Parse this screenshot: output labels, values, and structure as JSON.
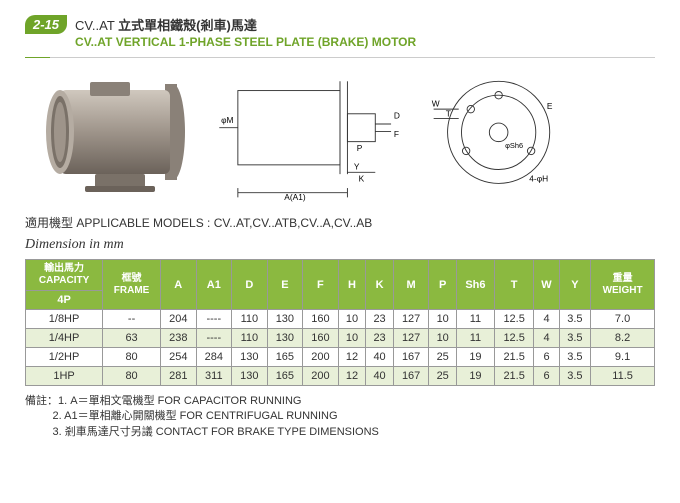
{
  "header": {
    "badge": "2-15",
    "code": "CV..AT",
    "title_zh": "立式單相鐵殼(剎車)馬達",
    "title_en": "CV..AT  VERTICAL 1-PHASE STEEL PLATE (BRAKE) MOTOR"
  },
  "diagram": {
    "labels": {
      "phiM": "φM",
      "D": "D",
      "F": "F",
      "P": "P",
      "Y": "Y",
      "K": "K",
      "A": "A(A1)",
      "W": "W",
      "T": "T",
      "E": "E",
      "Sh6": "φSh6",
      "H": "4-φH"
    }
  },
  "models": {
    "label": "適用機型 APPLICABLE MODELS :",
    "value": "CV..AT,CV..ATB,CV..A,CV..AB"
  },
  "dim_label": "Dimension in mm",
  "table": {
    "headers": {
      "capacity": {
        "zh": "輸出馬力",
        "en": "CAPACITY",
        "sub": "4P"
      },
      "frame": {
        "zh": "框號",
        "en": "FRAME"
      },
      "cols": [
        "A",
        "A1",
        "D",
        "E",
        "F",
        "H",
        "K",
        "M",
        "P",
        "Sh6",
        "T",
        "W",
        "Y"
      ],
      "weight": {
        "zh": "重量",
        "en": "WEIGHT"
      }
    },
    "rows": [
      {
        "cap": "1/8HP",
        "frame": "--",
        "A": "204",
        "A1": "----",
        "D": "110",
        "E": "130",
        "F": "160",
        "H": "10",
        "K": "23",
        "M": "127",
        "P": "10",
        "Sh6": "11",
        "T": "12.5",
        "W": "4",
        "Y": "3.5",
        "weight": "7.0"
      },
      {
        "cap": "1/4HP",
        "frame": "63",
        "A": "238",
        "A1": "----",
        "D": "110",
        "E": "130",
        "F": "160",
        "H": "10",
        "K": "23",
        "M": "127",
        "P": "10",
        "Sh6": "11",
        "T": "12.5",
        "W": "4",
        "Y": "3.5",
        "weight": "8.2"
      },
      {
        "cap": "1/2HP",
        "frame": "80",
        "A": "254",
        "A1": "284",
        "D": "130",
        "E": "165",
        "F": "200",
        "H": "12",
        "K": "40",
        "M": "167",
        "P": "25",
        "Sh6": "19",
        "T": "21.5",
        "W": "6",
        "Y": "3.5",
        "weight": "9.1"
      },
      {
        "cap": "1HP",
        "frame": "80",
        "A": "281",
        "A1": "311",
        "D": "130",
        "E": "165",
        "F": "200",
        "H": "12",
        "K": "40",
        "M": "167",
        "P": "25",
        "Sh6": "19",
        "T": "21.5",
        "W": "6",
        "Y": "3.5",
        "weight": "11.5"
      }
    ]
  },
  "notes": {
    "prefix": "備註：",
    "items": [
      "1. A＝單相文電機型  FOR CAPACITOR RUNNING",
      "2. A1＝單相離心開關機型  FOR CENTRIFUGAL RUNNING",
      "3. 剎車馬達尺寸另議  CONTACT FOR BRAKE TYPE DIMENSIONS"
    ]
  }
}
